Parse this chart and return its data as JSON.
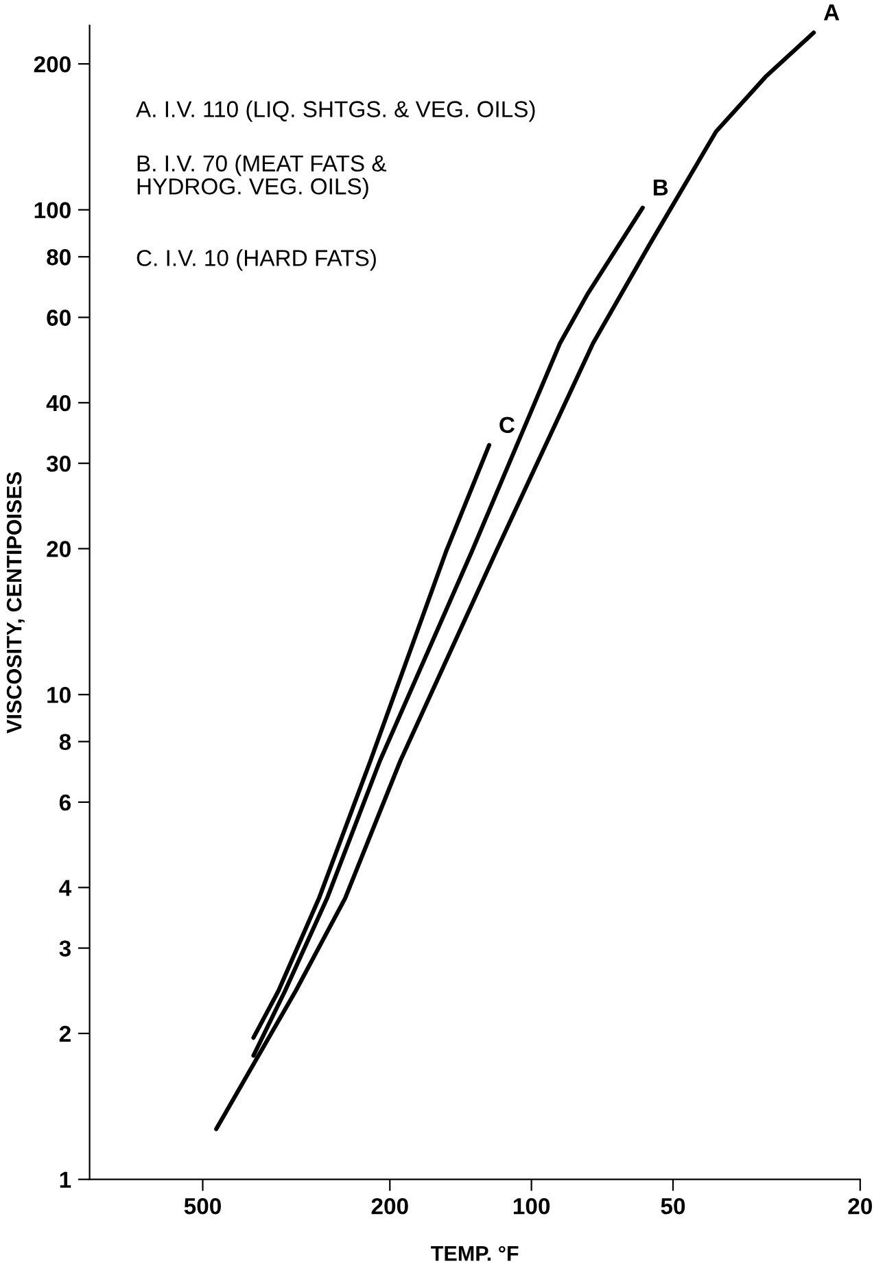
{
  "chart_data": {
    "type": "line",
    "xlabel": "TEMP. °F",
    "ylabel": "VISCOSITY, CENTIPOISES",
    "log": "xy",
    "grid": false,
    "marker": "none",
    "line_style": "solid",
    "xlim": [
      870,
      20
    ],
    "xticks": [
      500,
      200,
      100,
      50,
      20
    ],
    "ylim": [
      1,
      240
    ],
    "yticks": [
      1,
      2,
      3,
      4,
      6,
      8,
      10,
      20,
      30,
      40,
      60,
      80,
      100,
      200
    ],
    "annotations": [
      "A. I.V. 110 (LIQ. SHTGS. & VEG. OILS)",
      "B. I.V. 70 (MEAT FATS &\nHYDROG. VEG. OILS)",
      "C. I.V. 10 (HARD FATS)"
    ],
    "series": [
      {
        "name": "A",
        "color": "#000000",
        "x": [
          468,
          317,
          249,
          190,
          119,
          74,
          56,
          40.5,
          31.8,
          25.1
        ],
        "values": [
          1.27,
          2.45,
          3.8,
          7.3,
          19.7,
          53,
          85,
          145,
          188,
          232
        ]
      },
      {
        "name": "B",
        "color": "#000000",
        "x": [
          390,
          334,
          272,
          210,
          134,
          87,
          76,
          58
        ],
        "values": [
          1.8,
          2.45,
          3.8,
          7.3,
          19.7,
          53,
          67,
          101
        ]
      },
      {
        "name": "C",
        "color": "#000000",
        "x": [
          390,
          345,
          283,
          220,
          152,
          123
        ],
        "values": [
          1.96,
          2.45,
          3.8,
          7.3,
          19.7,
          32.7
        ]
      }
    ]
  }
}
